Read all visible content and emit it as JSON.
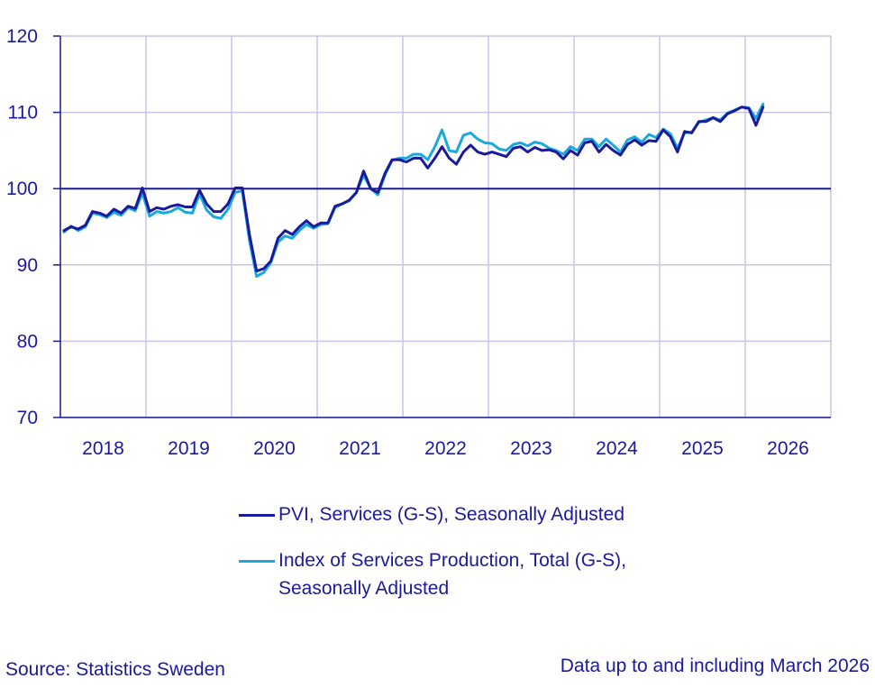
{
  "chart_data": {
    "type": "line",
    "title": "",
    "xlabel": "",
    "ylabel": "",
    "ylim": [
      70,
      120
    ],
    "yticks": [
      70,
      80,
      90,
      100,
      110,
      120
    ],
    "x_tick_labels": [
      "2018",
      "2019",
      "2020",
      "2021",
      "2022",
      "2023",
      "2024",
      "2025",
      "2026"
    ],
    "x_start": "2018-01",
    "x_end": "2026-12",
    "reference_line": 100,
    "grid": true,
    "legend_position": "bottom",
    "x": [
      "2018-01",
      "2018-02",
      "2018-03",
      "2018-04",
      "2018-05",
      "2018-06",
      "2018-07",
      "2018-08",
      "2018-09",
      "2018-10",
      "2018-11",
      "2018-12",
      "2019-01",
      "2019-02",
      "2019-03",
      "2019-04",
      "2019-05",
      "2019-06",
      "2019-07",
      "2019-08",
      "2019-09",
      "2019-10",
      "2019-11",
      "2019-12",
      "2020-01",
      "2020-02",
      "2020-03",
      "2020-04",
      "2020-05",
      "2020-06",
      "2020-07",
      "2020-08",
      "2020-09",
      "2020-10",
      "2020-11",
      "2020-12",
      "2021-01",
      "2021-02",
      "2021-03",
      "2021-04",
      "2021-05",
      "2021-06",
      "2021-07",
      "2021-08",
      "2021-09",
      "2021-10",
      "2021-11",
      "2021-12",
      "2022-01",
      "2022-02",
      "2022-03",
      "2022-04",
      "2022-05",
      "2022-06",
      "2022-07",
      "2022-08",
      "2022-09",
      "2022-10",
      "2022-11",
      "2022-12",
      "2023-01",
      "2023-02",
      "2023-03",
      "2023-04",
      "2023-05",
      "2023-06",
      "2023-07",
      "2023-08",
      "2023-09",
      "2023-10",
      "2023-11",
      "2023-12",
      "2024-01",
      "2024-02",
      "2024-03",
      "2024-04",
      "2024-05",
      "2024-06",
      "2024-07",
      "2024-08",
      "2024-09",
      "2024-10",
      "2024-11",
      "2024-12",
      "2025-01",
      "2025-02",
      "2025-03",
      "2025-04",
      "2025-05",
      "2025-06",
      "2025-07",
      "2025-08",
      "2025-09",
      "2025-10",
      "2025-11",
      "2025-12",
      "2026-01",
      "2026-02",
      "2026-03"
    ],
    "series": [
      {
        "name": "PVI, Services (G-S), Seasonally Adjusted",
        "color": "#1a1a9c",
        "values": [
          94.5,
          95.0,
          94.7,
          95.2,
          97.0,
          96.8,
          96.4,
          97.3,
          96.8,
          97.7,
          97.4,
          100.1,
          97.0,
          97.5,
          97.3,
          97.7,
          97.9,
          97.6,
          97.6,
          99.8,
          98.0,
          97.0,
          97.0,
          98.0,
          100.1,
          100.1,
          94.0,
          89.2,
          89.5,
          90.5,
          93.5,
          94.5,
          94.0,
          95.0,
          95.8,
          95.0,
          95.5,
          95.5,
          97.7,
          98.0,
          98.5,
          99.5,
          102.3,
          100.0,
          99.5,
          102.0,
          103.8,
          103.8,
          103.5,
          104.0,
          104.0,
          102.7,
          104.0,
          105.5,
          104.0,
          103.2,
          104.8,
          105.7,
          104.8,
          104.5,
          104.8,
          104.5,
          104.2,
          105.3,
          105.5,
          104.8,
          105.4,
          105.0,
          105.1,
          104.8,
          103.9,
          105.0,
          104.4,
          106.0,
          106.2,
          104.8,
          105.8,
          105.0,
          104.4,
          105.8,
          106.4,
          105.7,
          106.3,
          106.2,
          107.7,
          106.8,
          104.8,
          107.5,
          107.3,
          108.8,
          108.8,
          109.3,
          108.8,
          109.8,
          110.2,
          110.7,
          110.5,
          108.3,
          110.7
        ]
      },
      {
        "name": "Index of Services Production, Total (G-S), Seasonally Adjusted",
        "color": "#18a9de",
        "values": [
          94.3,
          95.1,
          94.5,
          95.0,
          96.8,
          96.6,
          96.2,
          96.9,
          96.5,
          97.5,
          97.1,
          99.4,
          96.4,
          97.0,
          96.8,
          97.0,
          97.5,
          96.9,
          96.8,
          99.3,
          97.2,
          96.3,
          96.1,
          97.3,
          99.5,
          99.7,
          93.2,
          88.5,
          89.0,
          90.3,
          93.0,
          93.8,
          93.5,
          94.5,
          95.3,
          94.8,
          95.3,
          95.4,
          97.5,
          98.0,
          98.4,
          99.5,
          101.8,
          100.0,
          99.2,
          101.8,
          103.7,
          104.0,
          104.0,
          104.5,
          104.5,
          103.8,
          105.5,
          107.7,
          105.0,
          104.8,
          107.0,
          107.3,
          106.5,
          106.0,
          105.9,
          105.2,
          105.0,
          105.8,
          106.0,
          105.6,
          106.1,
          105.9,
          105.3,
          105.0,
          104.5,
          105.5,
          105.0,
          106.5,
          106.5,
          105.5,
          106.5,
          105.7,
          104.8,
          106.4,
          106.8,
          106.1,
          107.1,
          106.7,
          107.8,
          107.2,
          105.3,
          107.3,
          107.4,
          108.7,
          109.0,
          109.3,
          109.0,
          109.9,
          110.3,
          110.7,
          110.6,
          109.2,
          111.1
        ]
      }
    ]
  },
  "legend": [
    {
      "label": "PVI, Services (G-S), Seasonally Adjusted"
    },
    {
      "label": "Index of Services Production, Total (G-S), Seasonally Adjusted"
    }
  ],
  "footer": {
    "source": "Source: Statistics Sweden",
    "note": "Data up to and including March 2026"
  }
}
